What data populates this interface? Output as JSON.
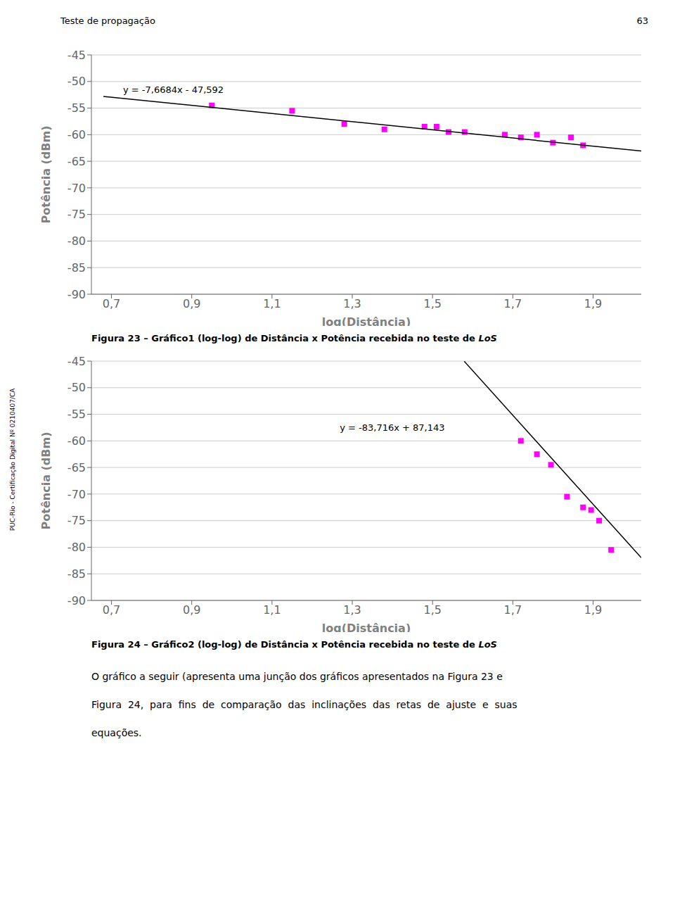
{
  "page_header": "Teste de propagação",
  "page_number": "63",
  "sidebar_text": "PUC-Rio - Certificação Digital Nº 0210407/CA",
  "body_text": [
    "O gráfico a seguir (apresenta uma junção dos gráficos apresentados na Figura 23 e",
    "Figura  24,  para  fins  de  comparação  das  inclinações  das  retas  de  ajuste  e  suas",
    "equações."
  ],
  "chart_data": [
    {
      "type": "scatter",
      "caption": "Figura 23 – Gráfico1 (log-log) de Distância x Potência recebida no teste de ",
      "caption_italic": "LoS",
      "xlabel": "log(Distância)",
      "ylabel": "Potência (dBm)",
      "xlim": [
        0.65,
        2.02
      ],
      "ylim": [
        -90,
        -45
      ],
      "xticks": [
        {
          "value": 0.7,
          "label": "0,7"
        },
        {
          "value": 0.9,
          "label": "0,9"
        },
        {
          "value": 1.1,
          "label": "1,1"
        },
        {
          "value": 1.3,
          "label": "1,3"
        },
        {
          "value": 1.5,
          "label": "1,5"
        },
        {
          "value": 1.7,
          "label": "1,7"
        },
        {
          "value": 1.9,
          "label": "1,9"
        }
      ],
      "yticks": [
        -90,
        -85,
        -80,
        -75,
        -70,
        -65,
        -60,
        -55,
        -50,
        -45
      ],
      "grid": "y",
      "annotations": [
        {
          "text": "y = -7,6684x - 47,592",
          "x": 0.72,
          "y": -51.5
        }
      ],
      "series": [
        {
          "type": "scatter",
          "color": "#ff00ff",
          "marker": "square",
          "x": [
            0.95,
            1.15,
            1.28,
            1.38,
            1.48,
            1.51,
            1.54,
            1.58,
            1.68,
            1.72,
            1.76,
            1.8,
            1.845,
            1.875
          ],
          "values": [
            -54.5,
            -55.5,
            -58.0,
            -59.0,
            -58.5,
            -58.5,
            -59.5,
            -59.5,
            -60.0,
            -60.5,
            -60.0,
            -61.5,
            -60.5,
            -62.0
          ]
        },
        {
          "type": "line",
          "color": "#000000",
          "x": [
            0.68,
            2.02
          ],
          "values": [
            -52.806512,
            -63.082168
          ]
        }
      ]
    },
    {
      "type": "scatter",
      "caption": "Figura 24 – Gráfico2 (log-log) de Distância x Potência recebida no teste de ",
      "caption_italic": "LoS",
      "xlabel": "log(Distância)",
      "ylabel": "Potência (dBm)",
      "xlim": [
        0.65,
        2.02
      ],
      "ylim": [
        -90,
        -45
      ],
      "xticks": [
        {
          "value": 0.7,
          "label": "0,7"
        },
        {
          "value": 0.9,
          "label": "0,9"
        },
        {
          "value": 1.1,
          "label": "1,1"
        },
        {
          "value": 1.3,
          "label": "1,3"
        },
        {
          "value": 1.5,
          "label": "1,5"
        },
        {
          "value": 1.7,
          "label": "1,7"
        },
        {
          "value": 1.9,
          "label": "1,9"
        }
      ],
      "yticks": [
        -90,
        -85,
        -80,
        -75,
        -70,
        -65,
        -60,
        -55,
        -50,
        -45
      ],
      "grid": "y",
      "annotations": [
        {
          "text": "y = -83,716x + 87,143",
          "x": 1.26,
          "y": -57.5
        }
      ],
      "series": [
        {
          "type": "scatter",
          "color": "#ff00ff",
          "marker": "square",
          "x": [
            1.72,
            1.76,
            1.795,
            1.835,
            1.875,
            1.895,
            1.915,
            1.945
          ],
          "values": [
            -60.0,
            -62.5,
            -64.5,
            -70.5,
            -72.5,
            -73.0,
            -75.0,
            -80.5
          ]
        },
        {
          "type": "line",
          "color": "#000000",
          "x": [
            1.5790452,
            2.02
          ],
          "values": [
            -45.04835,
            -81.96332
          ]
        }
      ]
    }
  ]
}
